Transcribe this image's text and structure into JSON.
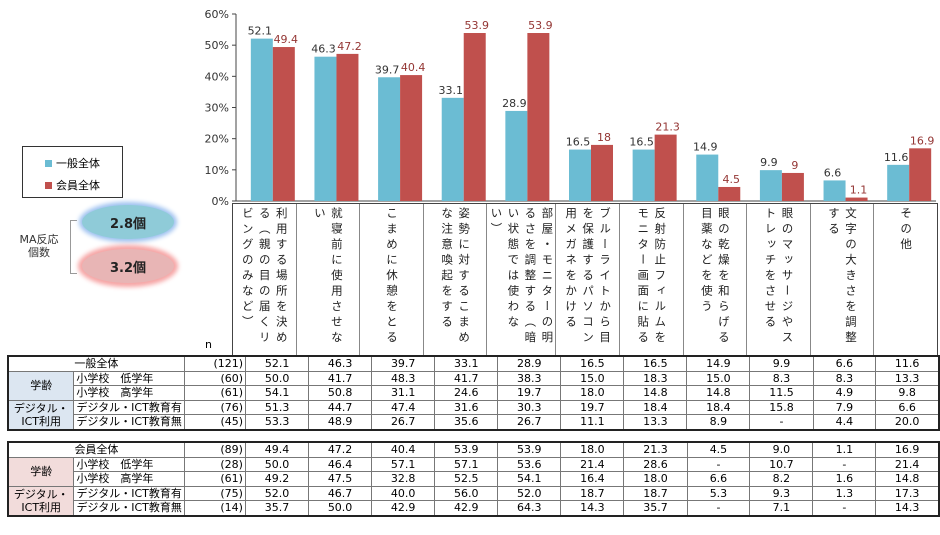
{
  "chart_data": {
    "type": "bar",
    "ylim": [
      0,
      60
    ],
    "yticks": [
      "0%",
      "10%",
      "20%",
      "30%",
      "40%",
      "50%",
      "60%"
    ],
    "categories": [
      "利用する場所を決める（親の目の届くリビングのみなど）",
      "就寝前に使用させない",
      "こまめに休憩をとる",
      "姿勢に対するこまめな注意喚起をする",
      "部屋・モニターの明るさを調整する（暗い状態では使わない）",
      "ブルーライトから目を保護するパソコン用メガネをかける",
      "反射防止フィルムをモニター画面に貼る",
      "眼の乾燥を和らげる目薬などを使う",
      "眼のマッサージやストレッチをさせる",
      "文字の大きさを調整する",
      "その他"
    ],
    "series": [
      {
        "name": "一般全体",
        "color": "#6bbcd3",
        "label_color": "#333333",
        "values": [
          52.1,
          46.3,
          39.7,
          33.1,
          28.9,
          16.5,
          16.5,
          14.9,
          9.9,
          6.6,
          11.6
        ]
      },
      {
        "name": "会員全体",
        "color": "#c0504d",
        "label_color": "#943634",
        "values": [
          49.4,
          47.2,
          40.4,
          53.9,
          53.9,
          18.0,
          21.3,
          4.5,
          9.0,
          1.1,
          16.9
        ]
      }
    ],
    "legend_position": "left"
  },
  "ma": {
    "label_line1": "MA反応",
    "label_line2": "個数",
    "general": "2.8個",
    "member": "3.2個"
  },
  "n_label": "n",
  "tables": [
    {
      "theme": "#dce6f1",
      "rows": [
        {
          "group": "一般全体",
          "sub": "",
          "n": "(121)",
          "values": [
            "52.1",
            "46.3",
            "39.7",
            "33.1",
            "28.9",
            "16.5",
            "16.5",
            "14.9",
            "9.9",
            "6.6",
            "11.6"
          ]
        },
        {
          "group": "学齢",
          "sub": "小学校　低学年",
          "n": "(60)",
          "values": [
            "50.0",
            "41.7",
            "48.3",
            "41.7",
            "38.3",
            "15.0",
            "18.3",
            "15.0",
            "8.3",
            "8.3",
            "13.3"
          ]
        },
        {
          "group": "",
          "sub": "小学校　高学年",
          "n": "(61)",
          "values": [
            "54.1",
            "50.8",
            "31.1",
            "24.6",
            "19.7",
            "18.0",
            "14.8",
            "14.8",
            "11.5",
            "4.9",
            "9.8"
          ]
        },
        {
          "group": "デジタル・ICT利用",
          "sub": "デジタル・ICT教育有",
          "n": "(76)",
          "values": [
            "51.3",
            "44.7",
            "47.4",
            "31.6",
            "30.3",
            "19.7",
            "18.4",
            "18.4",
            "15.8",
            "7.9",
            "6.6"
          ]
        },
        {
          "group": "",
          "sub": "デジタル・ICT教育無",
          "n": "(45)",
          "values": [
            "53.3",
            "48.9",
            "26.7",
            "35.6",
            "26.7",
            "11.1",
            "13.3",
            "8.9",
            "-",
            "4.4",
            "20.0"
          ]
        }
      ]
    },
    {
      "theme": "#f2dcdb",
      "rows": [
        {
          "group": "会員全体",
          "sub": "",
          "n": "(89)",
          "values": [
            "49.4",
            "47.2",
            "40.4",
            "53.9",
            "53.9",
            "18.0",
            "21.3",
            "4.5",
            "9.0",
            "1.1",
            "16.9"
          ]
        },
        {
          "group": "学齢",
          "sub": "小学校　低学年",
          "n": "(28)",
          "values": [
            "50.0",
            "46.4",
            "57.1",
            "57.1",
            "53.6",
            "21.4",
            "28.6",
            "-",
            "10.7",
            "-",
            "21.4"
          ]
        },
        {
          "group": "",
          "sub": "小学校　高学年",
          "n": "(61)",
          "values": [
            "49.2",
            "47.5",
            "32.8",
            "52.5",
            "54.1",
            "16.4",
            "18.0",
            "6.6",
            "8.2",
            "1.6",
            "14.8"
          ]
        },
        {
          "group": "デジタル・ICT利用",
          "sub": "デジタル・ICT教育有",
          "n": "(75)",
          "values": [
            "52.0",
            "46.7",
            "40.0",
            "56.0",
            "52.0",
            "18.7",
            "18.7",
            "5.3",
            "9.3",
            "1.3",
            "17.3"
          ]
        },
        {
          "group": "",
          "sub": "デジタル・ICT教育無",
          "n": "(14)",
          "values": [
            "35.7",
            "50.0",
            "42.9",
            "42.9",
            "64.3",
            "14.3",
            "35.7",
            "-",
            "7.1",
            "-",
            "14.3"
          ]
        }
      ]
    }
  ]
}
